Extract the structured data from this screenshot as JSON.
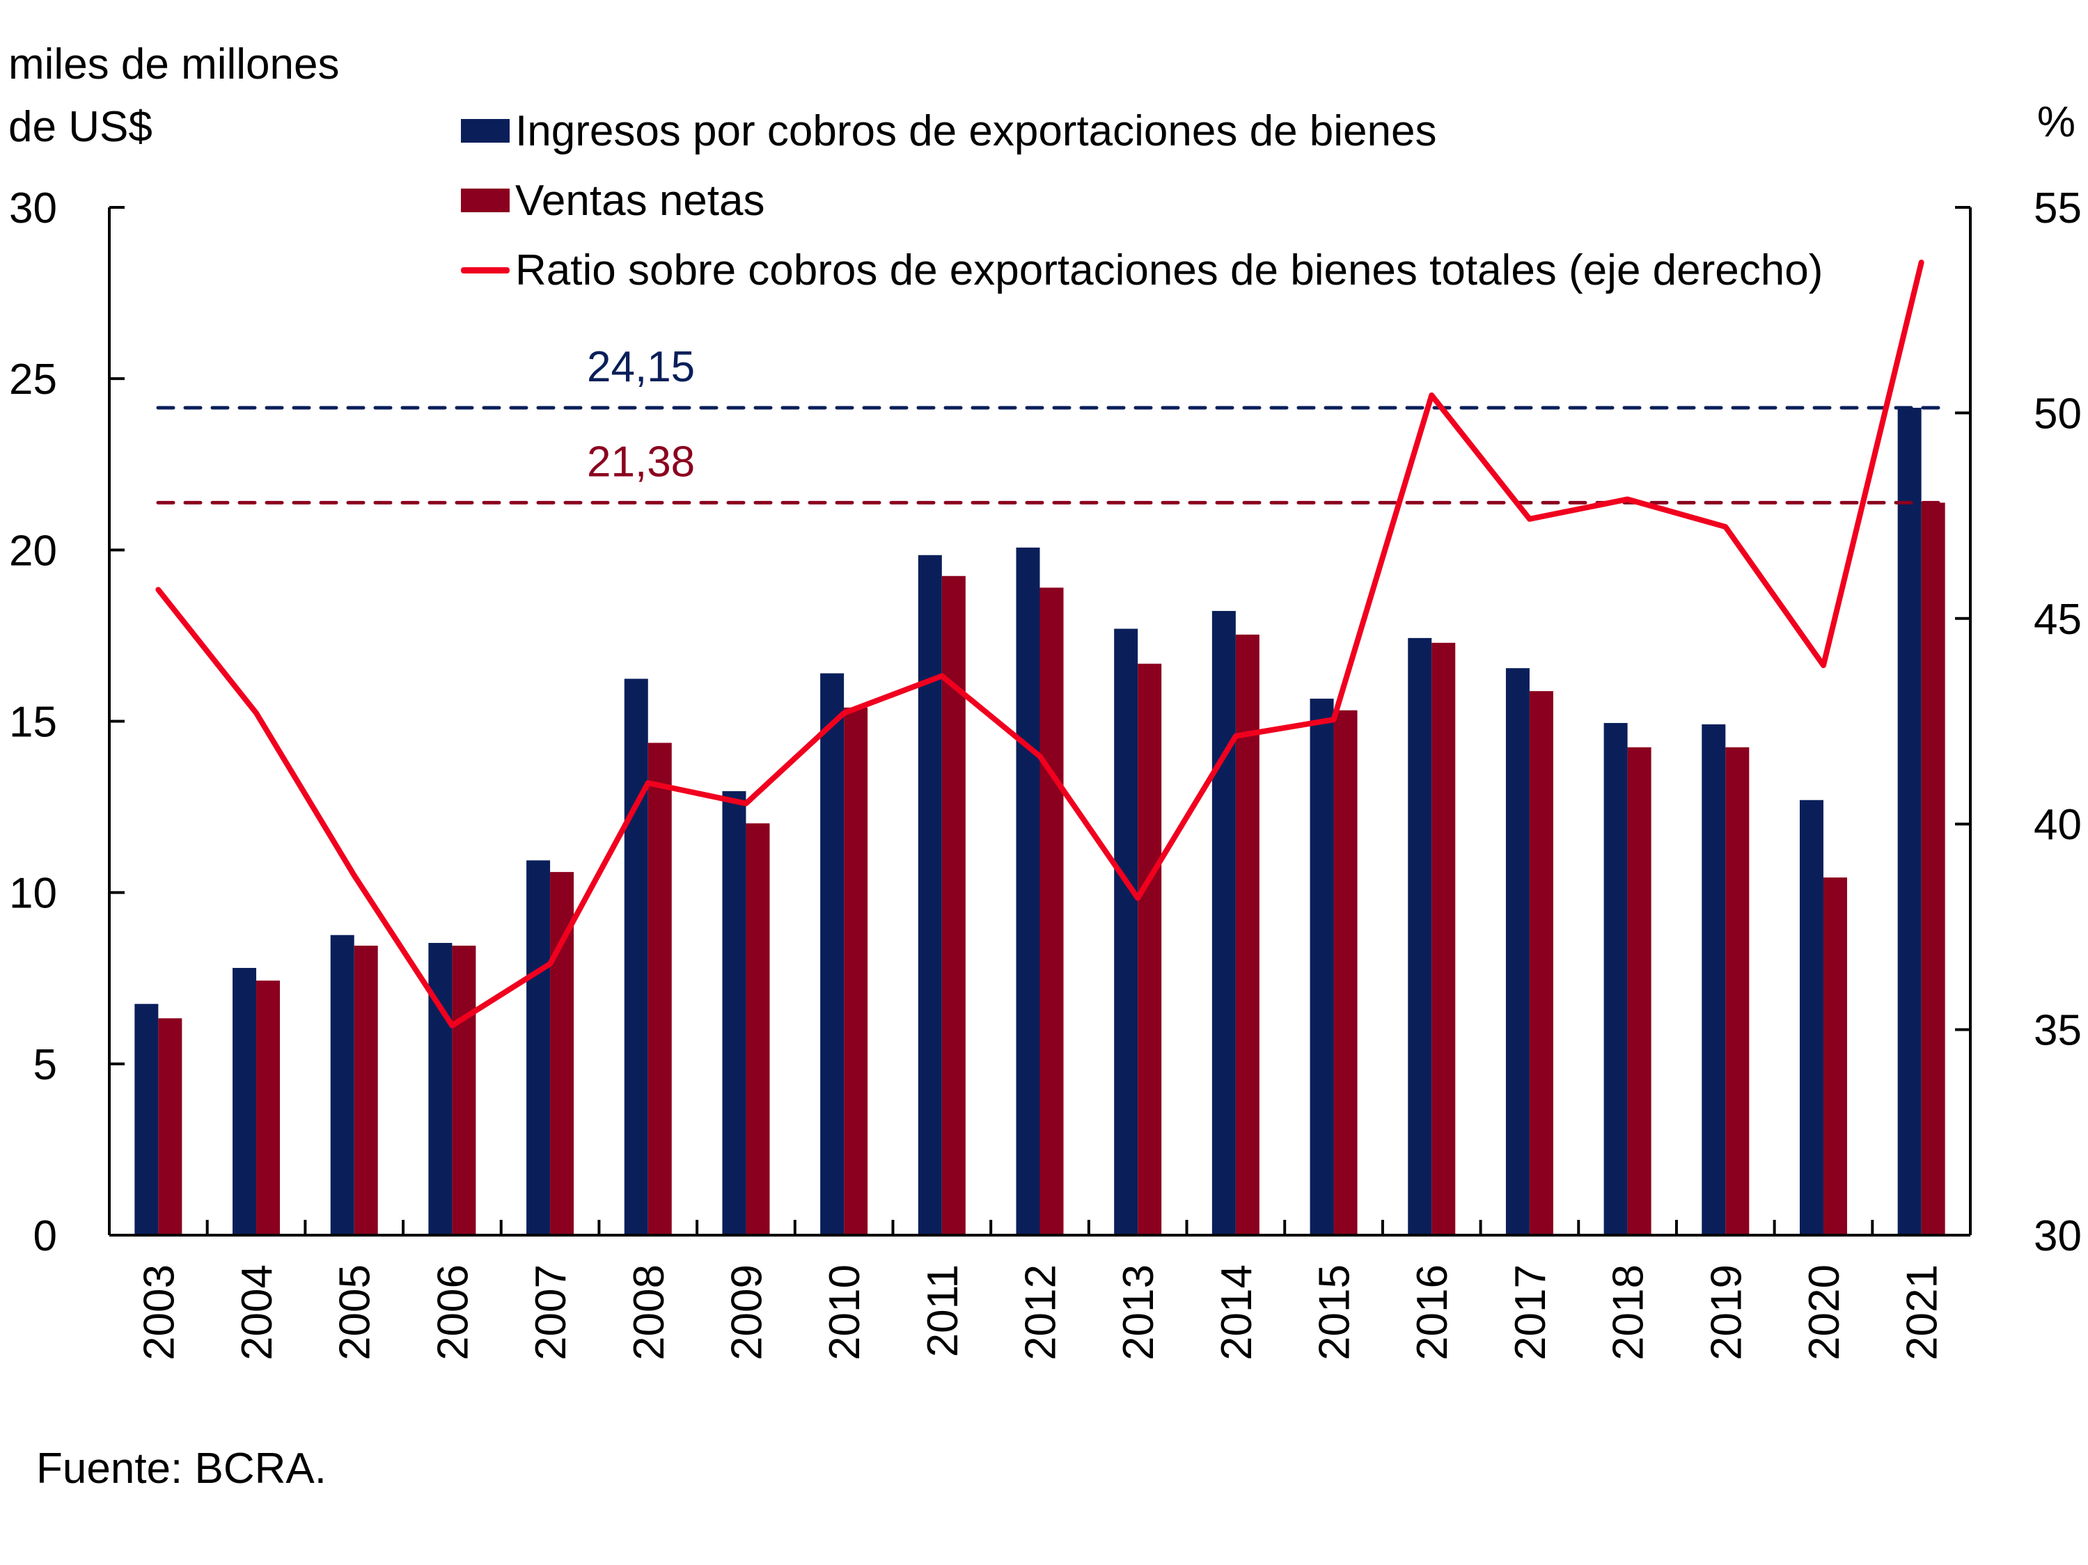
{
  "chart_data": {
    "type": "bar",
    "title": "",
    "y_left_label_line1": "miles de millones",
    "y_left_label_line2": "de US$",
    "y_right_label": "%",
    "source": "Fuente: BCRA.",
    "categories": [
      "2003",
      "2004",
      "2005",
      "2006",
      "2007",
      "2008",
      "2009",
      "2010",
      "2011",
      "2012",
      "2013",
      "2014",
      "2015",
      "2016",
      "2017",
      "2018",
      "2019",
      "2020",
      "2021"
    ],
    "series": [
      {
        "name": "Ingresos por cobros de exportaciones de bienes",
        "type": "bar",
        "axis": "left",
        "color": "#0a1f5a",
        "values": [
          6.75,
          7.8,
          8.76,
          8.53,
          10.94,
          16.24,
          12.96,
          16.4,
          19.85,
          20.07,
          17.7,
          18.22,
          15.66,
          17.43,
          16.55,
          14.95,
          14.91,
          12.7,
          24.15
        ]
      },
      {
        "name": "Ventas netas",
        "type": "bar",
        "axis": "left",
        "color": "#8b001e",
        "values": [
          6.33,
          7.43,
          8.45,
          8.45,
          10.6,
          14.37,
          12.02,
          15.4,
          19.24,
          18.9,
          16.68,
          17.53,
          15.32,
          17.29,
          15.88,
          14.24,
          14.24,
          10.44,
          21.38
        ]
      },
      {
        "name": "Ratio sobre cobros de exportaciones de bienes totales (eje derecho)",
        "type": "line",
        "axis": "right",
        "color": "#f0001e",
        "values": [
          45.7,
          42.7,
          38.75,
          35.1,
          36.6,
          41.0,
          40.5,
          42.7,
          43.6,
          41.65,
          38.2,
          42.14,
          42.54,
          50.43,
          47.42,
          47.9,
          47.23,
          43.86,
          53.66
        ]
      }
    ],
    "reference_lines": [
      {
        "value": 24.15,
        "label": "24,15",
        "color": "#0a1f5a",
        "axis": "left",
        "style": "dashed"
      },
      {
        "value": 21.38,
        "label": "21,38",
        "color": "#8b001e",
        "axis": "left",
        "style": "dashed"
      }
    ],
    "y_left": {
      "ylim": [
        0,
        30
      ],
      "ticks": [
        0,
        5,
        10,
        15,
        20,
        25,
        30
      ]
    },
    "y_right": {
      "ylim": [
        30,
        55
      ],
      "ticks": [
        30,
        35,
        40,
        45,
        50,
        55
      ]
    },
    "grid": false,
    "legend_position": "top"
  }
}
